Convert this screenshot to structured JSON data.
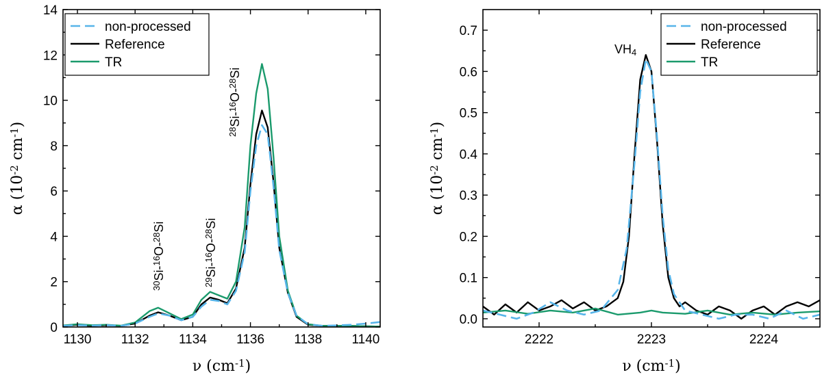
{
  "chart_data": [
    {
      "type": "line",
      "xlabel": "ν (cm⁻¹)",
      "ylabel": "α (10⁻² cm⁻¹)",
      "xlim": [
        1129.5,
        1140.5
      ],
      "ylim": [
        0,
        14
      ],
      "xticks": [
        1130,
        1132,
        1134,
        1136,
        1138,
        1140
      ],
      "yticks": [
        0,
        2,
        4,
        6,
        8,
        10,
        12,
        14
      ],
      "grid": false,
      "legend_position": "top-left",
      "annotations": [
        {
          "text": "³⁰Si-¹⁶O-²⁸Si",
          "x": 1132.8,
          "y": 0.9
        },
        {
          "text": "²⁹Si-¹⁶O-²⁸Si",
          "x": 1134.7,
          "y": 1.7
        },
        {
          "text": "²⁸Si-¹⁶O-²⁸Si",
          "x": 1136.0,
          "y": 8.6
        }
      ],
      "series": [
        {
          "name": "non-processed",
          "color": "#56b4e9",
          "dash": true,
          "x": [
            1129.5,
            1130,
            1130.5,
            1131,
            1131.5,
            1132,
            1132.5,
            1132.8,
            1133.2,
            1133.6,
            1134,
            1134.3,
            1134.6,
            1134.9,
            1135.2,
            1135.5,
            1135.8,
            1136.0,
            1136.2,
            1136.4,
            1136.6,
            1136.8,
            1137.0,
            1137.3,
            1137.6,
            1138,
            1138.5,
            1139,
            1139.5,
            1140,
            1140.5
          ],
          "y": [
            0.05,
            0.08,
            0.06,
            0.08,
            0.05,
            0.15,
            0.45,
            0.6,
            0.5,
            0.3,
            0.45,
            0.9,
            1.2,
            1.15,
            1.0,
            1.6,
            3.3,
            6.0,
            8.0,
            8.9,
            8.5,
            6.2,
            3.4,
            1.5,
            0.5,
            0.12,
            0.05,
            0.07,
            0.1,
            0.15,
            0.22
          ]
        },
        {
          "name": "Reference",
          "color": "#000000",
          "dash": false,
          "x": [
            1129.5,
            1130,
            1130.5,
            1131,
            1131.5,
            1132,
            1132.5,
            1132.8,
            1133.2,
            1133.6,
            1134,
            1134.3,
            1134.6,
            1134.9,
            1135.2,
            1135.5,
            1135.8,
            1136.0,
            1136.2,
            1136.4,
            1136.6,
            1136.8,
            1137.0,
            1137.3,
            1137.6,
            1138,
            1138.5,
            1139,
            1139.5,
            1140,
            1140.5
          ],
          "y": [
            0.05,
            0.1,
            0.05,
            0.08,
            0.05,
            0.15,
            0.5,
            0.65,
            0.5,
            0.3,
            0.45,
            1.0,
            1.3,
            1.2,
            1.05,
            1.7,
            3.5,
            6.3,
            8.5,
            9.55,
            8.8,
            6.4,
            3.5,
            1.5,
            0.45,
            0.1,
            0.05,
            0.05,
            0.05,
            0.03,
            0.02
          ]
        },
        {
          "name": "TR",
          "color": "#1a9a6c",
          "dash": false,
          "x": [
            1129.5,
            1130,
            1130.5,
            1131,
            1131.5,
            1132,
            1132.5,
            1132.8,
            1133.2,
            1133.6,
            1134,
            1134.3,
            1134.6,
            1134.9,
            1135.2,
            1135.5,
            1135.8,
            1136.0,
            1136.2,
            1136.4,
            1136.6,
            1136.8,
            1137.0,
            1137.3,
            1137.6,
            1138,
            1138.5,
            1139,
            1139.5,
            1140,
            1140.5
          ],
          "y": [
            0.07,
            0.12,
            0.08,
            0.1,
            0.06,
            0.2,
            0.7,
            0.85,
            0.6,
            0.35,
            0.55,
            1.2,
            1.55,
            1.4,
            1.25,
            2.0,
            4.4,
            8.0,
            10.3,
            11.6,
            10.5,
            7.5,
            4.0,
            1.6,
            0.5,
            0.12,
            0.05,
            0.05,
            0.05,
            0.03,
            0.02
          ]
        }
      ]
    },
    {
      "type": "line",
      "xlabel": "ν (cm⁻¹)",
      "ylabel": "α (10⁻² cm⁻¹)",
      "xlim": [
        2221.5,
        2224.5
      ],
      "ylim": [
        -0.02,
        0.75
      ],
      "xticks": [
        2222,
        2223,
        2224
      ],
      "yticks": [
        0,
        0.1,
        0.2,
        0.3,
        0.4,
        0.5,
        0.6,
        0.7
      ],
      "ytick_labels": [
        "0.0",
        "0.1",
        "0.2",
        "0.3",
        "0.4",
        "0.5",
        "0.6",
        "0.7"
      ],
      "grid": false,
      "legend_position": "top-right",
      "annotations": [
        {
          "text": "VH₄",
          "x": 2222.8,
          "y": 0.66
        }
      ],
      "series": [
        {
          "name": "non-processed",
          "color": "#56b4e9",
          "dash": true,
          "x": [
            2221.5,
            2221.65,
            2221.8,
            2221.95,
            2222.1,
            2222.25,
            2222.4,
            2222.55,
            2222.7,
            2222.78,
            2222.85,
            2222.9,
            2222.95,
            2223.0,
            2223.05,
            2223.1,
            2223.15,
            2223.2,
            2223.3,
            2223.45,
            2223.6,
            2223.75,
            2223.9,
            2224.05,
            2224.2,
            2224.35,
            2224.5
          ],
          "y": [
            0.02,
            0.01,
            0.0,
            0.015,
            0.04,
            0.02,
            0.01,
            0.02,
            0.07,
            0.17,
            0.38,
            0.55,
            0.63,
            0.6,
            0.44,
            0.25,
            0.12,
            0.06,
            0.02,
            0.01,
            0.0,
            0.01,
            0.01,
            0.0,
            0.02,
            0.0,
            0.01
          ]
        },
        {
          "name": "Reference",
          "color": "#000000",
          "dash": false,
          "x": [
            2221.5,
            2221.6,
            2221.7,
            2221.8,
            2221.9,
            2222.0,
            2222.1,
            2222.2,
            2222.3,
            2222.4,
            2222.5,
            2222.6,
            2222.65,
            2222.7,
            2222.75,
            2222.8,
            2222.85,
            2222.9,
            2222.95,
            2223.0,
            2223.05,
            2223.1,
            2223.15,
            2223.2,
            2223.25,
            2223.3,
            2223.4,
            2223.5,
            2223.6,
            2223.7,
            2223.8,
            2223.9,
            2224.0,
            2224.1,
            2224.2,
            2224.3,
            2224.4,
            2224.5
          ],
          "y": [
            0.03,
            0.01,
            0.035,
            0.015,
            0.04,
            0.02,
            0.03,
            0.045,
            0.025,
            0.04,
            0.02,
            0.03,
            0.04,
            0.05,
            0.09,
            0.2,
            0.4,
            0.58,
            0.64,
            0.6,
            0.43,
            0.23,
            0.1,
            0.05,
            0.03,
            0.04,
            0.02,
            0.01,
            0.03,
            0.02,
            0.0,
            0.02,
            0.03,
            0.01,
            0.03,
            0.04,
            0.03,
            0.045
          ]
        },
        {
          "name": "TR",
          "color": "#1a9a6c",
          "dash": false,
          "x": [
            2221.5,
            2221.7,
            2221.9,
            2222.1,
            2222.3,
            2222.5,
            2222.7,
            2222.9,
            2223.0,
            2223.1,
            2223.3,
            2223.5,
            2223.7,
            2223.9,
            2224.1,
            2224.3,
            2224.5
          ],
          "y": [
            0.015,
            0.02,
            0.012,
            0.02,
            0.015,
            0.025,
            0.01,
            0.015,
            0.02,
            0.015,
            0.012,
            0.02,
            0.01,
            0.015,
            0.01,
            0.015,
            0.018
          ]
        }
      ]
    }
  ]
}
